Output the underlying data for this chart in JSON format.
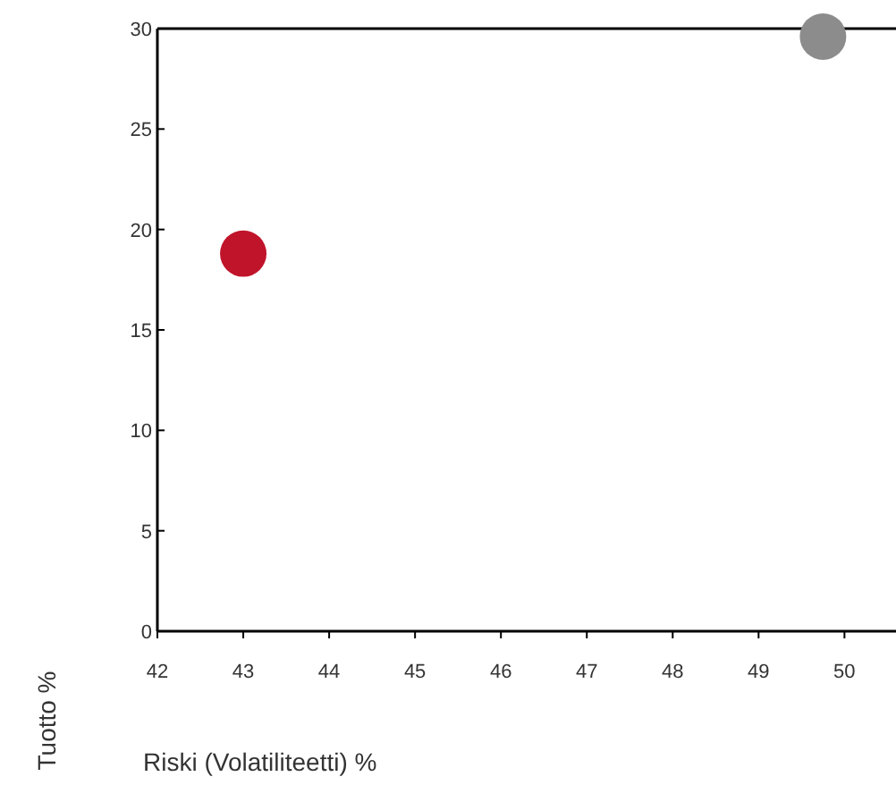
{
  "chart_data": {
    "type": "scatter",
    "xlabel": "Riski (Volatiliteetti) %",
    "ylabel": "Tuotto %",
    "xlim": [
      42,
      50.6
    ],
    "ylim": [
      0,
      30
    ],
    "xticks": [
      42,
      43,
      44,
      45,
      46,
      47,
      48,
      49,
      50
    ],
    "yticks": [
      0,
      5,
      10,
      15,
      20,
      25,
      30
    ],
    "marker": "circle",
    "series": [
      {
        "x": [
          43
        ],
        "values": [
          18.8
        ],
        "color": "#c0142a"
      },
      {
        "x": [
          49.75
        ],
        "values": [
          29.6
        ],
        "color": "#8c8c8c"
      }
    ]
  }
}
